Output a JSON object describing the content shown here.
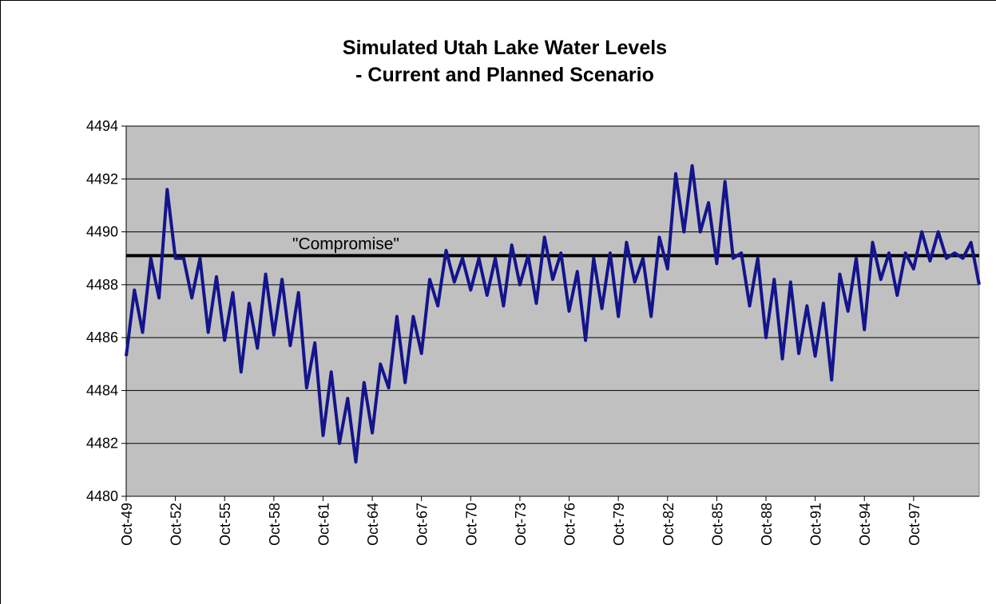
{
  "chart_data": {
    "type": "line",
    "title_lines": [
      "Simulated Utah Lake Water Levels",
      "- Current and Planned Scenario"
    ],
    "categories": [
      "Oct-49",
      null,
      null,
      null,
      null,
      null,
      "Oct-52",
      null,
      null,
      null,
      null,
      null,
      "Oct-55",
      null,
      null,
      null,
      null,
      null,
      "Oct-58",
      null,
      null,
      null,
      null,
      null,
      "Oct-61",
      null,
      null,
      null,
      null,
      null,
      "Oct-64",
      null,
      null,
      null,
      null,
      null,
      "Oct-67",
      null,
      null,
      null,
      null,
      null,
      "Oct-70",
      null,
      null,
      null,
      null,
      null,
      "Oct-73",
      null,
      null,
      null,
      null,
      null,
      "Oct-76",
      null,
      null,
      null,
      null,
      null,
      "Oct-79",
      null,
      null,
      null,
      null,
      null,
      "Oct-82",
      null,
      null,
      null,
      null,
      null,
      "Oct-85",
      null,
      null,
      null,
      null,
      null,
      "Oct-88",
      null,
      null,
      null,
      null,
      null,
      "Oct-91",
      null,
      null,
      null,
      null,
      null,
      "Oct-94",
      null,
      null,
      null,
      null,
      null,
      "Oct-97",
      null,
      null,
      null,
      null,
      null,
      null,
      null,
      null
    ],
    "series": [
      {
        "color": "#14148c",
        "values": [
          4485.3,
          4487.8,
          4486.2,
          4489,
          4487.5,
          4491.6,
          4489,
          4489,
          4487.5,
          4489,
          4486.2,
          4488.3,
          4485.9,
          4487.7,
          4484.7,
          4487.3,
          4485.6,
          4488.4,
          4486.1,
          4488.2,
          4485.7,
          4487.7,
          4484.1,
          4485.8,
          4482.3,
          4484.7,
          4482,
          4483.7,
          4481.3,
          4484.3,
          4482.4,
          4485,
          4484.1,
          4486.8,
          4484.3,
          4486.8,
          4485.4,
          4488.2,
          4487.2,
          4489.3,
          4488.1,
          4489,
          4487.8,
          4489,
          4487.6,
          4489,
          4487.2,
          4489.5,
          4488,
          4489.1,
          4487.3,
          4489.8,
          4488.2,
          4489.2,
          4487,
          4488.5,
          4485.9,
          4489,
          4487.1,
          4489.2,
          4486.8,
          4489.6,
          4488.1,
          4489,
          4486.8,
          4489.8,
          4488.6,
          4492.2,
          4490,
          4492.5,
          4490,
          4491.1,
          4488.8,
          4491.9,
          4489,
          4489.2,
          4487.2,
          4489,
          4486,
          4488.2,
          4485.2,
          4488.1,
          4485.4,
          4487.2,
          4485.3,
          4487.3,
          4484.4,
          4488.4,
          4487,
          4489,
          4486.3,
          4489.6,
          4488.2,
          4489.2,
          4487.6,
          4489.2,
          4488.6,
          4490,
          4488.9,
          4490,
          4489,
          4489.2,
          4489,
          4489.6,
          4488
        ]
      }
    ],
    "reference_line": {
      "label": "\"Compromise\"",
      "value": 4489.1,
      "color": "#000000"
    },
    "ylim": [
      4480,
      4494
    ],
    "yticks": [
      4480,
      4482,
      4484,
      4486,
      4488,
      4490,
      4492,
      4494
    ],
    "grid": true,
    "plot_background": "#c0c0c0"
  }
}
